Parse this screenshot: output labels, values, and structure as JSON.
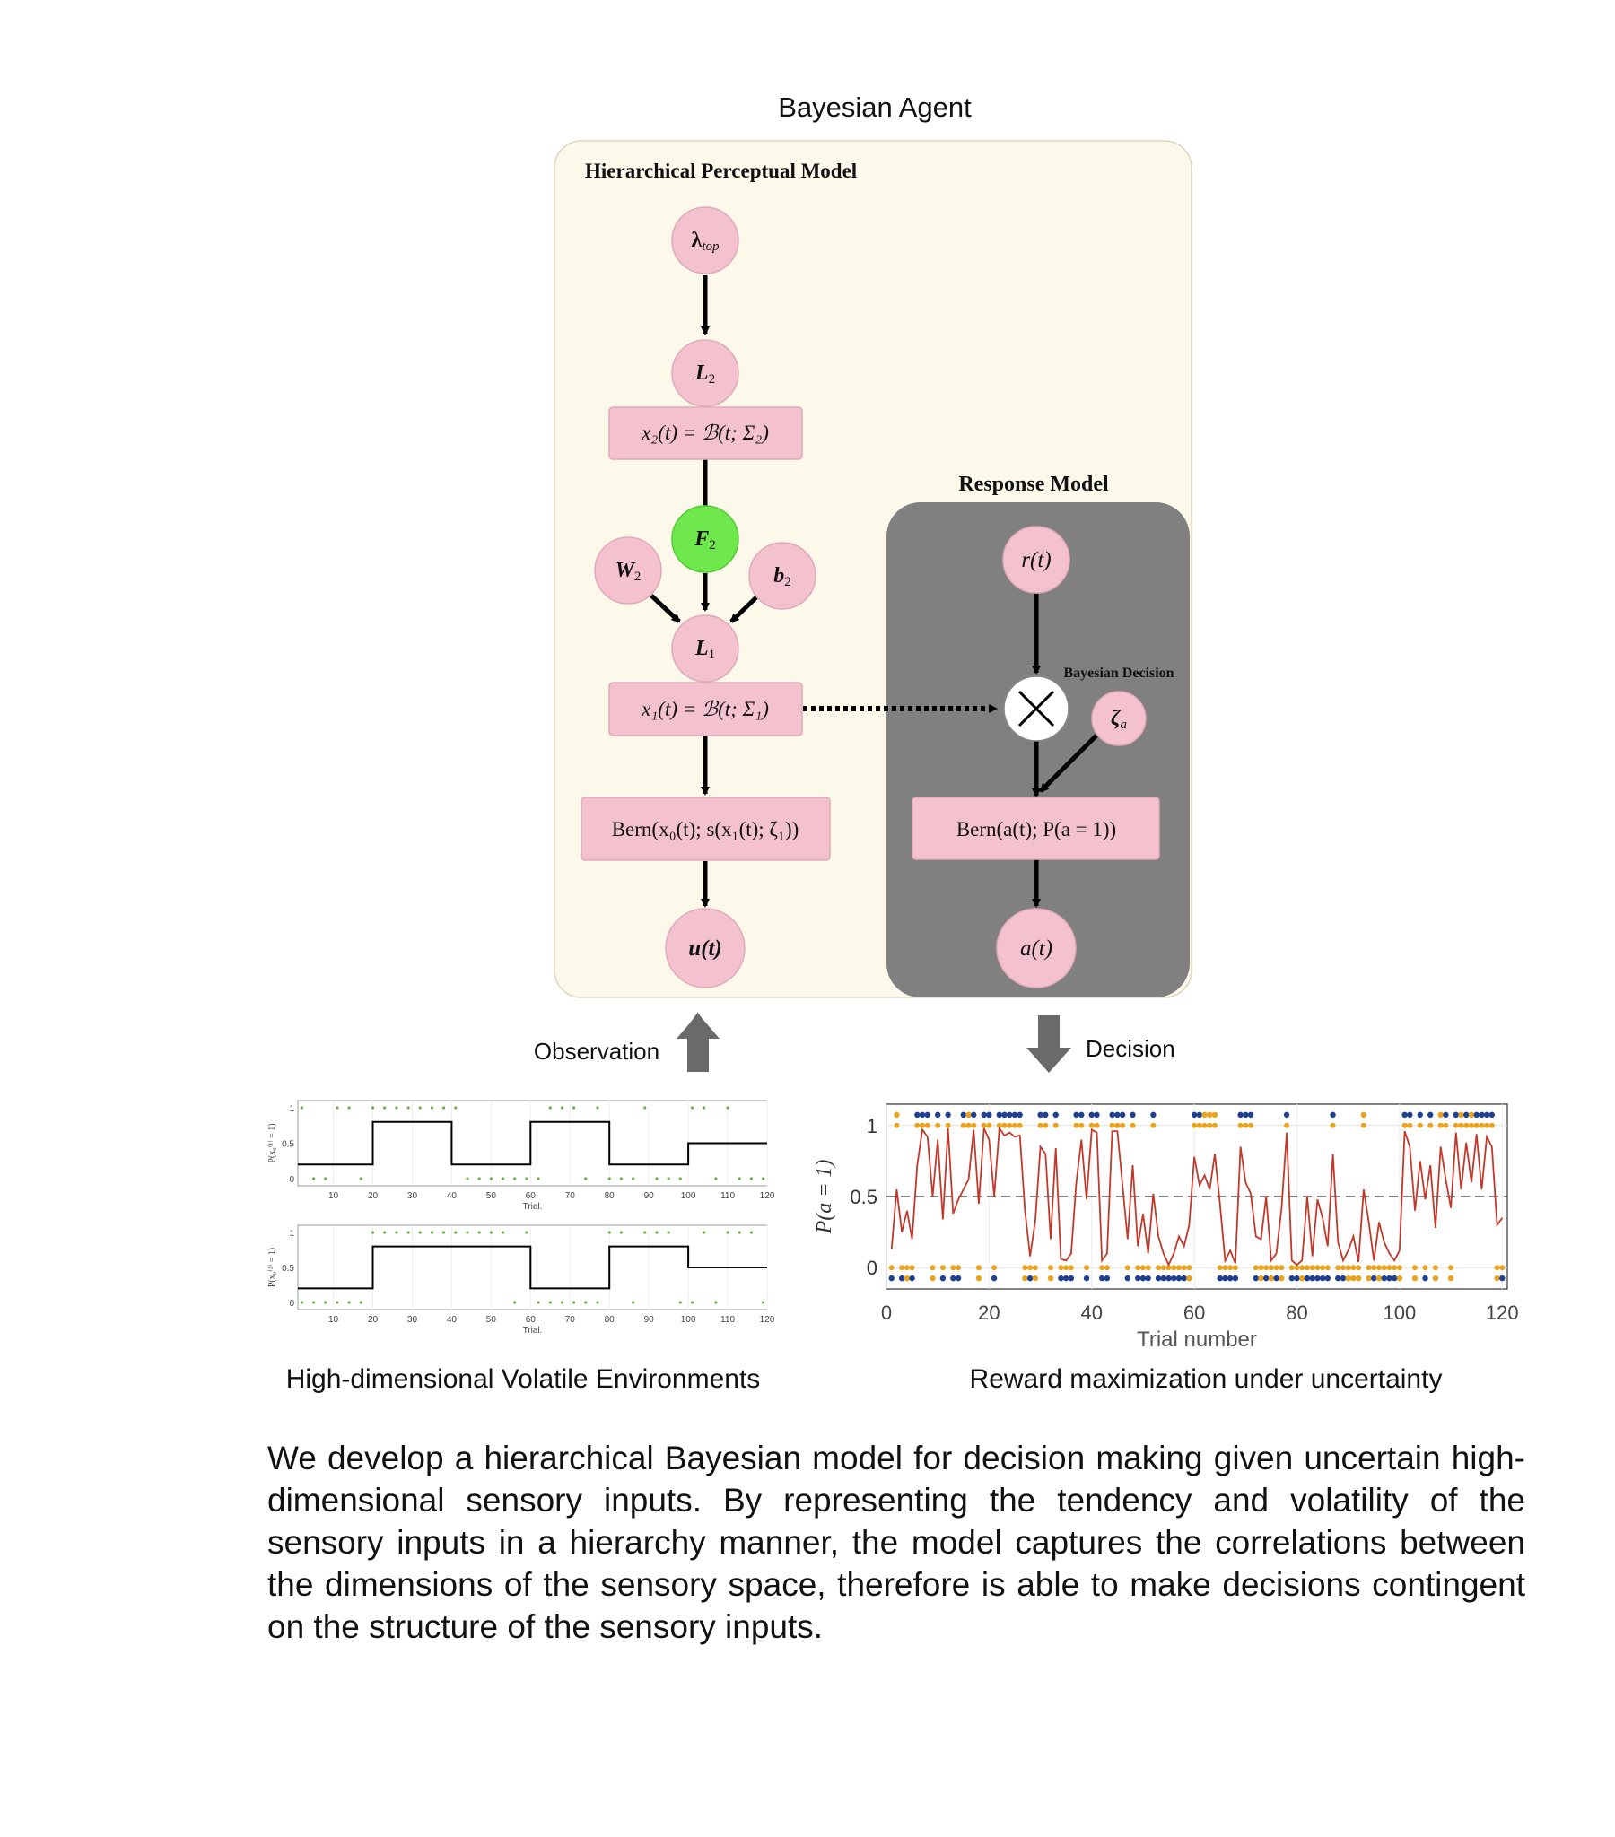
{
  "title": "Bayesian Agent",
  "perceptual_model": {
    "label": "Hierarchical Perceptual Model",
    "nodes": {
      "lambda_top": "λ",
      "lambda_top_sub": "top",
      "L2": "L",
      "L2_sub": "2",
      "x2_box": "x₂(t) = ℬ(t; Σ₂)",
      "F2": "F",
      "F2_sub": "2",
      "W2": "W",
      "W2_sub": "2",
      "b2": "b",
      "b2_sub": "2",
      "L1": "L",
      "L1_sub": "1",
      "x1_box": "x₁(t) = ℬ(t; Σ₁)",
      "bern_box": "Bern(x₀(t); s(x₁(t); ζ₁))",
      "u": "u(t)"
    }
  },
  "response_model": {
    "label": "Response Model",
    "nodes": {
      "r": "r(t)",
      "decision_label": "Bayesian Decision",
      "zeta_a": "ζ",
      "zeta_a_sub": "a",
      "bern_box": "Bern(a(t); P(a = 1))",
      "a": "a(t)"
    }
  },
  "arrows": {
    "observation": "Observation",
    "decision": "Decision"
  },
  "left_panel": {
    "caption": "High-dimensional Volatile Environments",
    "x_ticks": [
      "10",
      "20",
      "30",
      "40",
      "50",
      "60",
      "70",
      "80",
      "90",
      "100",
      "110",
      "120"
    ],
    "x_label": "Trial.",
    "y_ticks": [
      "0",
      "0.5",
      "1"
    ],
    "colors": {
      "line": "#000000",
      "dots": "#6ab04c"
    },
    "plots": [
      {
        "ylabel": "P(x₀⁽¹⁾ = 1)"
      },
      {
        "ylabel": "P(x₀⁽²⁾ = 1)"
      }
    ]
  },
  "right_panel": {
    "caption": "Reward maximization under uncertainty",
    "colors": {
      "line": "#c0392b",
      "blue": "#1f3f8f",
      "orange": "#e8a320"
    }
  },
  "chart_data": [
    {
      "type": "line",
      "xlabel": "Trial.",
      "ylabel": "P(x₀⁽¹⁾ = 1)",
      "xlim": [
        1,
        120
      ],
      "ylim": [
        0,
        1
      ],
      "x_ticks": [
        10,
        20,
        30,
        40,
        50,
        60,
        70,
        80,
        90,
        100,
        110,
        120
      ],
      "y_ticks": [
        0,
        0.5,
        1
      ],
      "series": [
        {
          "x": [
            1,
            20,
            20,
            40,
            40,
            60,
            60,
            80,
            80,
            100,
            100,
            120
          ],
          "values": [
            0.2,
            0.2,
            0.8,
            0.8,
            0.2,
            0.2,
            0.8,
            0.8,
            0.2,
            0.2,
            0.5,
            0.5
          ]
        }
      ]
    },
    {
      "type": "line",
      "xlabel": "Trial.",
      "ylabel": "P(x₀⁽²⁾ = 1)",
      "xlim": [
        1,
        120
      ],
      "ylim": [
        0,
        1
      ],
      "x_ticks": [
        10,
        20,
        30,
        40,
        50,
        60,
        70,
        80,
        90,
        100,
        110,
        120
      ],
      "y_ticks": [
        0,
        0.5,
        1
      ],
      "series": [
        {
          "x": [
            1,
            20,
            20,
            60,
            60,
            80,
            80,
            100,
            100,
            120
          ],
          "values": [
            0.2,
            0.2,
            0.8,
            0.8,
            0.2,
            0.2,
            0.8,
            0.8,
            0.5,
            0.5
          ]
        }
      ]
    },
    {
      "type": "line",
      "xlabel": "Trial number",
      "ylabel": "P(a = 1)",
      "xlim": [
        0,
        121
      ],
      "ylim": [
        -0.15,
        1.15
      ],
      "x_ticks": [
        0,
        20,
        40,
        60,
        80,
        100,
        120
      ],
      "y_ticks": [
        0,
        0.5,
        1
      ],
      "series": [
        {
          "name": "",
          "x": [
            1,
            2,
            3,
            4,
            5,
            6,
            7,
            8,
            9,
            10,
            11,
            12,
            13,
            14,
            15,
            16,
            17,
            18,
            19,
            20,
            21,
            22,
            23,
            24,
            25,
            26,
            27,
            28,
            29,
            30,
            31,
            32,
            33,
            34,
            35,
            36,
            37,
            38,
            39,
            40,
            41,
            42,
            43,
            44,
            45,
            46,
            47,
            48,
            49,
            50,
            51,
            52,
            53,
            54,
            55,
            56,
            57,
            58,
            59,
            60,
            61,
            62,
            63,
            64,
            65,
            66,
            67,
            68,
            69,
            70,
            71,
            72,
            73,
            74,
            75,
            76,
            77,
            78,
            79,
            80,
            81,
            82,
            83,
            84,
            85,
            86,
            87,
            88,
            89,
            90,
            91,
            92,
            93,
            94,
            95,
            96,
            97,
            98,
            99,
            100,
            101,
            102,
            103,
            104,
            105,
            106,
            107,
            108,
            109,
            110,
            111,
            112,
            113,
            114,
            115,
            116,
            117,
            118,
            119,
            120
          ],
          "values": [
            0.13,
            0.55,
            0.25,
            0.4,
            0.2,
            0.72,
            0.97,
            0.92,
            0.5,
            0.9,
            0.34,
            0.98,
            0.38,
            0.48,
            0.55,
            0.62,
            0.97,
            0.45,
            0.98,
            0.9,
            0.5,
            0.98,
            0.93,
            0.95,
            0.92,
            0.93,
            0.4,
            0.08,
            0.33,
            0.85,
            0.8,
            0.2,
            0.84,
            0.06,
            0.05,
            0.1,
            0.6,
            0.9,
            0.48,
            0.97,
            0.95,
            0.05,
            0.1,
            0.96,
            0.96,
            0.58,
            0.2,
            0.72,
            0.15,
            0.38,
            0.1,
            0.52,
            0.22,
            0.1,
            0.02,
            0.1,
            0.22,
            0.15,
            0.3,
            0.78,
            0.58,
            0.65,
            0.55,
            0.8,
            0.45,
            0.05,
            0.12,
            0.03,
            0.85,
            0.6,
            0.52,
            0.22,
            0.2,
            0.5,
            0.05,
            0.1,
            0.42,
            0.95,
            0.05,
            0.02,
            0.05,
            0.5,
            0.08,
            0.48,
            0.35,
            0.15,
            0.8,
            0.18,
            0.05,
            0.12,
            0.22,
            0.04,
            0.55,
            0.32,
            0.05,
            0.32,
            0.18,
            0.1,
            0.05,
            0.12,
            0.96,
            0.85,
            0.4,
            0.75,
            0.48,
            0.72,
            0.28,
            0.85,
            0.62,
            0.42,
            0.95,
            0.55,
            0.88,
            0.6,
            0.94,
            0.55,
            0.92,
            0.85,
            0.3,
            0.35
          ]
        }
      ],
      "reference_line": 0.5
    }
  ],
  "description": "We develop a hierarchical Bayesian model for decision making given uncertain high-dimensional sensory inputs. By representing the tendency and volatility of the sensory inputs in a hierarchy manner, the model captures the correlations between the dimensions of the sensory space, therefore is able to make decisions contingent on the structure of the sensory inputs."
}
